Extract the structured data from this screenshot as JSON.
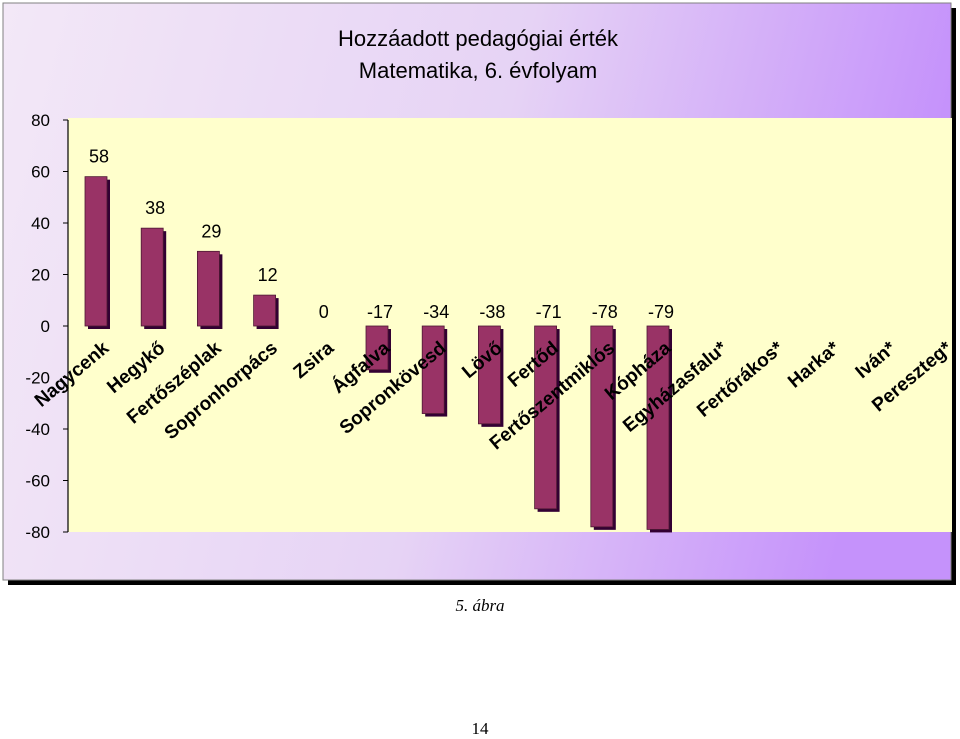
{
  "chart_data": {
    "type": "bar",
    "title": "Hozzáadott pedagógiai érték",
    "subtitle": "Matematika, 6. évfolyam",
    "xlabel": "",
    "ylabel": "",
    "ylim": [
      -80,
      80
    ],
    "yticks": [
      "80",
      "60",
      "40",
      "20",
      "0",
      "-20",
      "-40",
      "-60",
      "-80"
    ],
    "categories": [
      "Nagycenk",
      "Hegykő",
      "Fertőszéplak",
      "Sopronhorpács",
      "Zsira",
      "Ágfalva",
      "Sopronkövesd",
      "Lövő",
      "Fertőd",
      "Fertőszentmiklós",
      "Kópháza",
      "Egyházasfalu*",
      "Fertőrákos*",
      "Harka*",
      "Iván*",
      "Pereszteg*"
    ],
    "values": [
      58,
      38,
      29,
      12,
      0,
      -17,
      -34,
      -38,
      -71,
      -78,
      -79,
      null,
      null,
      null,
      null,
      null
    ],
    "value_labels": [
      "58",
      "38",
      "29",
      "12",
      "0",
      "-17",
      "-34",
      "-38",
      "-71",
      "-78",
      "-79",
      "",
      "",
      "",
      "",
      ""
    ],
    "grid": false,
    "legend": "none",
    "colors": {
      "bar": "#993366",
      "bar_shadow": "#330033",
      "plot_background": "#ffffcc",
      "frame_gradient_left": "#f3e8f7",
      "frame_gradient_right": "#c89cfc"
    }
  },
  "figure_caption": "5. ábra",
  "page_number": "14"
}
